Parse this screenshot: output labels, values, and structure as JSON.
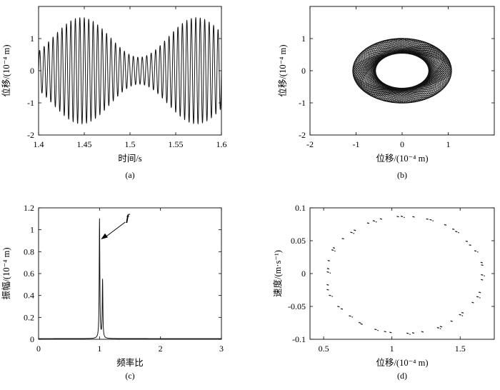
{
  "chart_data": [
    {
      "panel": "a",
      "type": "line",
      "caption": "(a)",
      "xlabel": "时间/s",
      "ylabel": "位移/(10⁻⁴ m)",
      "xlim": [
        1.4,
        1.6
      ],
      "ylim": [
        -2,
        2
      ],
      "xticks": [
        "1.4",
        "1.45",
        "1.5",
        "1.55",
        "1.6"
      ],
      "yticks": [
        "-2",
        "-1",
        "0",
        "1"
      ],
      "signal": {
        "shape": "amplitude-modulated oscillation (beat)",
        "oscillation_cycles_in_window": 41,
        "envelope_max": 1.65,
        "envelope_min": 0.42,
        "envelope_peaks_at": [
          1.447,
          1.573
        ]
      }
    },
    {
      "panel": "b",
      "type": "line",
      "caption": "(b)",
      "xlabel": "位移/(10⁻⁴ m)",
      "ylabel": "位移/(10⁻⁴ m)",
      "xlim": [
        -2,
        2
      ],
      "ylim": [
        -2,
        2
      ],
      "xticks": [
        "-2",
        "-1",
        "0",
        "1"
      ],
      "yticks": [
        "-2",
        "-1",
        "0",
        "1"
      ],
      "orbit": {
        "shape": "precessing elliptical orbit forming a ring",
        "outer_radius_x": 1.65,
        "outer_radius_y": 1.55,
        "inner_hole_radius": 0.5
      }
    },
    {
      "panel": "c",
      "type": "line",
      "caption": "(c)",
      "xlabel": "频率比",
      "ylabel": "振幅/(10⁻⁴ m)",
      "xlim": [
        0,
        3
      ],
      "ylim": [
        0,
        1.2
      ],
      "xticks": [
        "0",
        "1",
        "2",
        "3"
      ],
      "yticks": [
        "0",
        "0.2",
        "0.4",
        "0.6",
        "0.8",
        "1",
        "1.2"
      ],
      "peaks": [
        {
          "x": 1.0,
          "y": 1.09
        },
        {
          "x": 1.05,
          "y": 0.53
        }
      ],
      "annotation": {
        "text": "f",
        "points_to": {
          "x": 1.0,
          "y": 0.9
        }
      }
    },
    {
      "panel": "d",
      "type": "scatter",
      "caption": "(d)",
      "xlabel": "位移/(10⁻⁴ m)",
      "ylabel": "速度/(m·s⁻¹)",
      "xlim": [
        0.4,
        1.75
      ],
      "ylim": [
        -0.1,
        0.1
      ],
      "xticks": [
        "0.5",
        "1",
        "1.5"
      ],
      "yticks": [
        "-0.1",
        "-0.05",
        "0",
        "0.05",
        "0.1"
      ],
      "poincare": {
        "shape": "closed loop of sampled points",
        "center": [
          1.09,
          -0.002
        ],
        "radius_x": 0.57,
        "radius_y": 0.089,
        "point_count": 48
      }
    }
  ]
}
